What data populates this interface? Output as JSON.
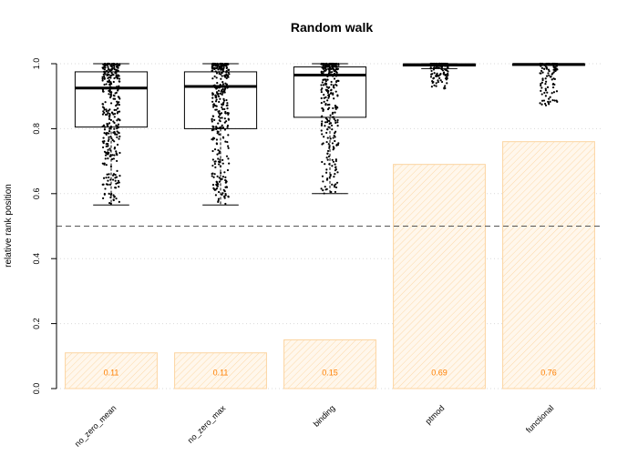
{
  "chart_data": {
    "type": "box",
    "title": "Random walk",
    "xlabel": "",
    "ylabel": "relative rank position",
    "ylim": [
      0,
      1
    ],
    "yticks": [
      "0.0",
      "0.2",
      "0.4",
      "0.6",
      "0.8",
      "1.0"
    ],
    "grid": "horizontal dotted",
    "reference_line": 0.5,
    "categories": [
      "no_zero_mean",
      "no_zero_max",
      "binding",
      "ptmod",
      "functional"
    ],
    "bars": {
      "values": [
        0.11,
        0.11,
        0.15,
        0.69,
        0.76
      ],
      "labels": [
        "0.11",
        "0.11",
        "0.15",
        "0.69",
        "0.76"
      ],
      "color": "#ff7f00",
      "fill": "#fff4e6"
    },
    "boxes": [
      {
        "min": 0.565,
        "q1": 0.805,
        "median": 0.925,
        "q3": 0.975,
        "max": 1.0
      },
      {
        "min": 0.565,
        "q1": 0.8,
        "median": 0.93,
        "q3": 0.975,
        "max": 1.0
      },
      {
        "min": 0.6,
        "q1": 0.835,
        "median": 0.965,
        "q3": 0.99,
        "max": 1.0
      },
      {
        "min": 0.985,
        "q1": 0.993,
        "median": 0.997,
        "q3": 0.999,
        "max": 1.0
      },
      {
        "min": 0.996,
        "q1": 0.997,
        "median": 0.998,
        "q3": 0.999,
        "max": 1.0
      }
    ],
    "jitter_points": [
      {
        "count": 340,
        "min": 0.565,
        "concentration": 2.0
      },
      {
        "count": 340,
        "min": 0.565,
        "concentration": 2.0
      },
      {
        "count": 300,
        "min": 0.6,
        "concentration": 2.5
      },
      {
        "count": 140,
        "min": 0.92,
        "concentration": 3.0
      },
      {
        "count": 110,
        "min": 0.87,
        "concentration": 3.0
      }
    ]
  }
}
